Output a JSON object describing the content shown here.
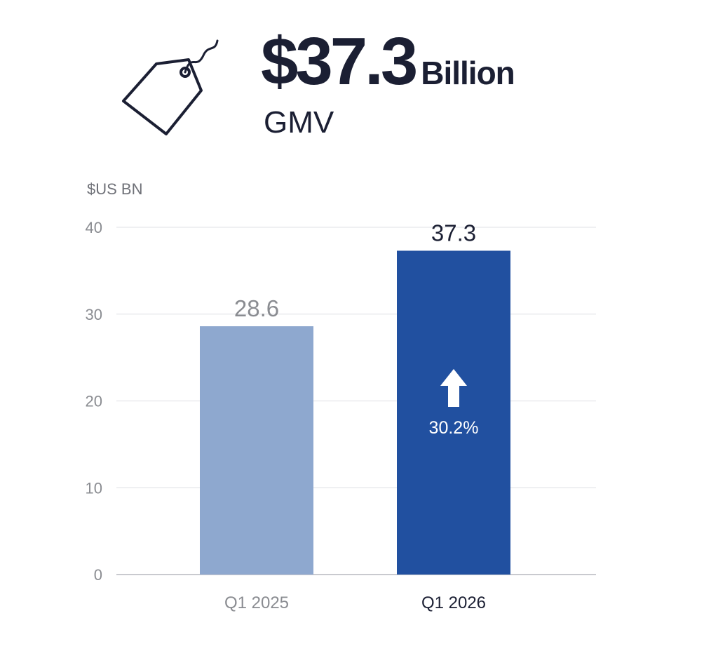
{
  "hero": {
    "amount": "$37.3",
    "unit": "Billion",
    "metric": "GMV",
    "icon": "price-tag-icon"
  },
  "chart_data": {
    "type": "bar",
    "unit_label": "$US BN",
    "categories": [
      "Q1 2025",
      "Q1 2026"
    ],
    "values": [
      28.6,
      37.3
    ],
    "value_labels": [
      "28.6",
      "37.3"
    ],
    "ylim": [
      0,
      40
    ],
    "yticks": [
      0,
      10,
      20,
      30,
      40
    ],
    "grid": true,
    "bar_colors": [
      "#8ea8cf",
      "#2150a0"
    ],
    "category_colors": [
      "#8a8c91",
      "#1b1f33"
    ],
    "value_label_colors": [
      "#8a8c91",
      "#1b1f33"
    ],
    "growth": {
      "label": "30.2%",
      "direction": "up",
      "icon": "up-arrow-icon",
      "bar_index": 1
    },
    "title": "",
    "xlabel": "",
    "ylabel": ""
  }
}
